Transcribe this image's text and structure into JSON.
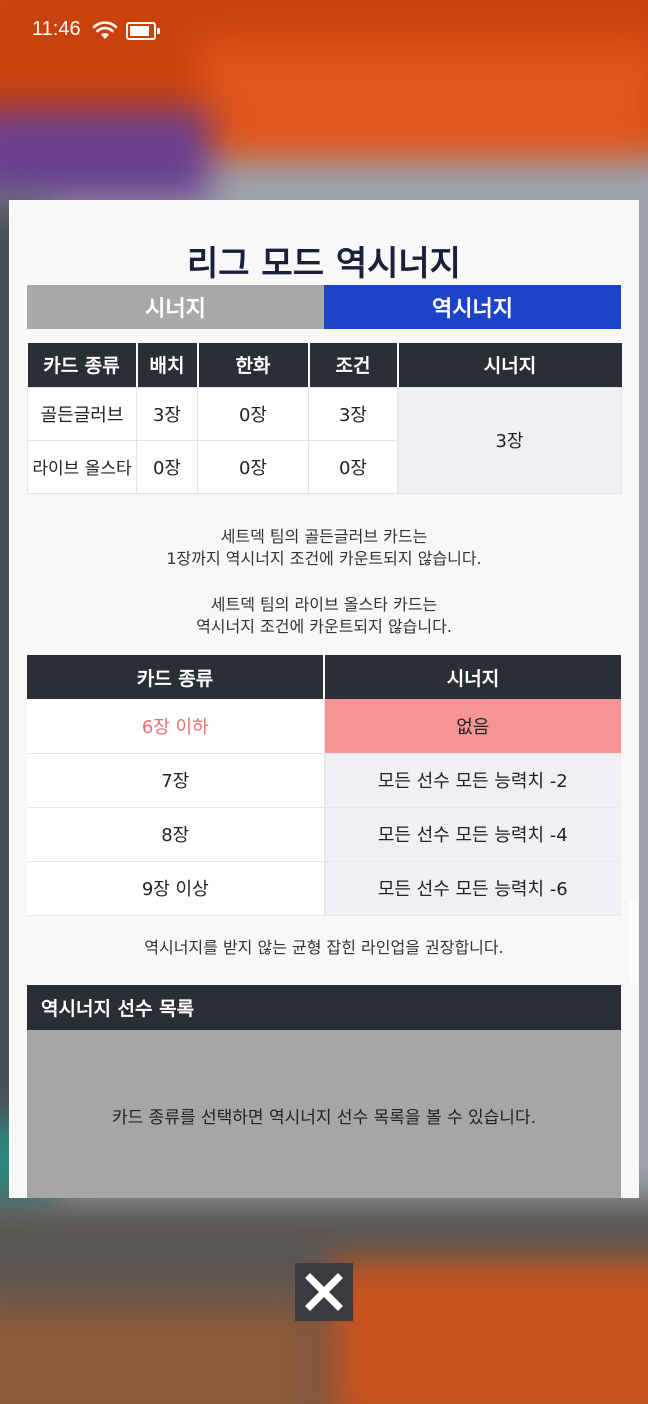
{
  "status_bar": {
    "time": "11:46"
  },
  "modal": {
    "title": "리그 모드 역시너지",
    "tabs": [
      {
        "label": "시너지",
        "active": false
      },
      {
        "label": "역시너지",
        "active": true
      }
    ],
    "count_table": {
      "headers": [
        "카드 종류",
        "배치",
        "한화",
        "조건",
        "시너지"
      ],
      "rows": [
        {
          "type": "골든글러브",
          "placed": "3장",
          "hanwha": "0장",
          "condition": "3장"
        },
        {
          "type": "라이브 올스타",
          "placed": "0장",
          "hanwha": "0장",
          "condition": "0장"
        }
      ],
      "synergy_total": "3장"
    },
    "notes": {
      "golden_line1": "세트덱 팀의 골든글러브 카드는",
      "golden_line2": "1장까지 역시너지 조건에 카운트되지 않습니다.",
      "allstar_line1": "세트덱 팀의 라이브 올스타 카드는",
      "allstar_line2": "역시너지 조건에 카운트되지 않습니다."
    },
    "penalty_table": {
      "headers": [
        "카드 종류",
        "시너지"
      ],
      "rows": [
        {
          "cards": "6장 이하",
          "effect": "없음",
          "current": true
        },
        {
          "cards": "7장",
          "effect": "모든 선수 모든 능력치 -2",
          "current": false
        },
        {
          "cards": "8장",
          "effect": "모든 선수 모든 능력치 -4",
          "current": false
        },
        {
          "cards": "9장 이상",
          "effect": "모든 선수 모든 능력치 -6",
          "current": false
        }
      ]
    },
    "recommendation": "역시너지를 받지 않는 균형 잡힌 라인업을 권장합니다.",
    "player_list": {
      "title": "역시너지 선수 목록",
      "empty_message": "카드 종류를 선택하면 역시너지 선수 목록을 볼 수 있습니다."
    }
  },
  "colors": {
    "tab_active": "#1d44c8",
    "tab_inactive": "#a9a9a9",
    "header_dark": "#2b2e35",
    "highlight_row": "#f69494",
    "highlight_text": "#e87070"
  },
  "icons": {
    "wifi": "wifi-icon",
    "battery": "battery-icon",
    "close": "close-icon"
  }
}
